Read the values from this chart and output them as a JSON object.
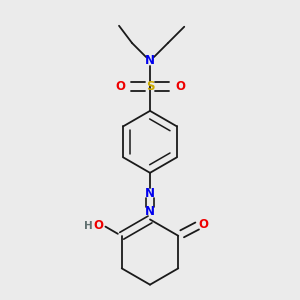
{
  "background_color": "#ebebeb",
  "bond_color": "#1a1a1a",
  "N_color": "#0000ee",
  "O_color": "#ee0000",
  "S_color": "#ccaa00",
  "H_color": "#607070",
  "figsize": [
    3.0,
    3.0
  ],
  "dpi": 100,
  "xlim": [
    0.15,
    0.85
  ],
  "ylim": [
    0.05,
    0.97
  ]
}
